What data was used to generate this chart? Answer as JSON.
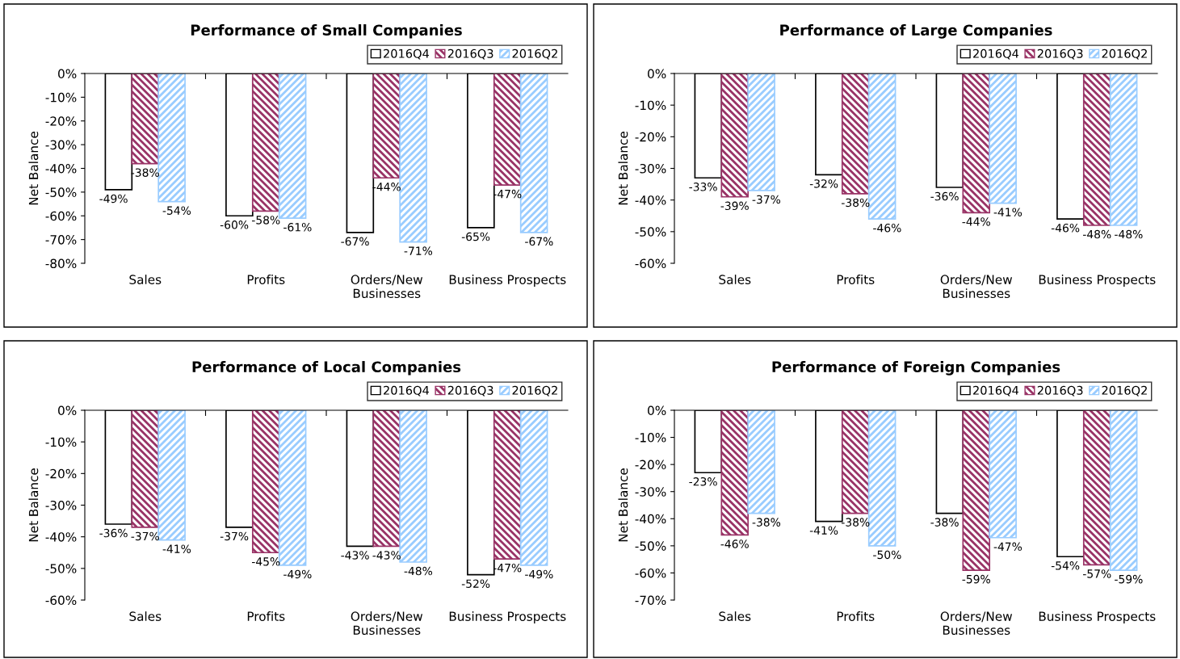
{
  "chart_data": [
    {
      "type": "bar",
      "title": "Performance of Small Companies",
      "ylabel": "Net Balance",
      "categories": [
        "Sales",
        "Profits",
        "Orders/New\nBusinesses",
        "Business Prospects"
      ],
      "legend": "top right",
      "grid": false,
      "ylim": [
        -80,
        0
      ],
      "yticks": [
        {
          "value": -80,
          "label": "-80%"
        },
        {
          "value": -70,
          "label": "-70%"
        },
        {
          "value": -60,
          "label": "-60%"
        },
        {
          "value": -50,
          "label": "-50%"
        },
        {
          "value": -40,
          "label": "-40%"
        },
        {
          "value": -30,
          "label": "-30%"
        },
        {
          "value": -20,
          "label": "-20%"
        },
        {
          "value": -10,
          "label": "-10%"
        },
        {
          "value": 0,
          "label": "0%"
        }
      ],
      "series": [
        {
          "name": "2016Q4",
          "color": "#000000",
          "values": [
            -49,
            -60,
            -67,
            -65
          ],
          "value_labels": [
            "-49%",
            "-60%",
            "-67%",
            "-65%"
          ]
        },
        {
          "name": "2016Q3",
          "color": "#993366",
          "values": [
            -38,
            -58,
            -44,
            -47
          ],
          "value_labels": [
            "-38%",
            "-58%",
            "-44%",
            "-47%"
          ]
        },
        {
          "name": "2016Q2",
          "color": "#99ccff",
          "values": [
            -54,
            -61,
            -71,
            -67
          ],
          "value_labels": [
            "-54%",
            "-61%",
            "-71%",
            "-67%"
          ]
        }
      ]
    },
    {
      "type": "bar",
      "title": "Performance of Large Companies",
      "ylabel": "Net Balance",
      "categories": [
        "Sales",
        "Profits",
        "Orders/New\nBusinesses",
        "Business Prospects"
      ],
      "legend": "top right",
      "grid": false,
      "ylim": [
        -60,
        0
      ],
      "yticks": [
        {
          "value": -60,
          "label": "-60%"
        },
        {
          "value": -50,
          "label": "-50%"
        },
        {
          "value": -40,
          "label": "-40%"
        },
        {
          "value": -30,
          "label": "-30%"
        },
        {
          "value": -20,
          "label": "-20%"
        },
        {
          "value": -10,
          "label": "-10%"
        },
        {
          "value": 0,
          "label": "0%"
        }
      ],
      "series": [
        {
          "name": "2016Q4",
          "color": "#000000",
          "values": [
            -33,
            -32,
            -36,
            -46
          ],
          "value_labels": [
            "-33%",
            "-32%",
            "-36%",
            "-46%"
          ]
        },
        {
          "name": "2016Q3",
          "color": "#993366",
          "values": [
            -39,
            -38,
            -44,
            -48
          ],
          "value_labels": [
            "-39%",
            "-38%",
            "-44%",
            "-48%"
          ]
        },
        {
          "name": "2016Q2",
          "color": "#99ccff",
          "values": [
            -37,
            -46,
            -41,
            -48
          ],
          "value_labels": [
            "-37%",
            "-46%",
            "-41%",
            "-48%"
          ]
        }
      ]
    },
    {
      "type": "bar",
      "title": "Performance of Local Companies",
      "ylabel": "Net Balance",
      "categories": [
        "Sales",
        "Profits",
        "Orders/New\nBusinesses",
        "Business Prospects"
      ],
      "legend": "top right",
      "grid": false,
      "ylim": [
        -60,
        0
      ],
      "yticks": [
        {
          "value": -60,
          "label": "-60%"
        },
        {
          "value": -50,
          "label": "-50%"
        },
        {
          "value": -40,
          "label": "-40%"
        },
        {
          "value": -30,
          "label": "-30%"
        },
        {
          "value": -20,
          "label": "-20%"
        },
        {
          "value": -10,
          "label": "-10%"
        },
        {
          "value": 0,
          "label": "0%"
        }
      ],
      "series": [
        {
          "name": "2016Q4",
          "color": "#000000",
          "values": [
            -36,
            -37,
            -43,
            -52
          ],
          "value_labels": [
            "-36%",
            "-37%",
            "-43%",
            "-52%"
          ]
        },
        {
          "name": "2016Q3",
          "color": "#993366",
          "values": [
            -37,
            -45,
            -43,
            -47
          ],
          "value_labels": [
            "-37%",
            "-45%",
            "-43%",
            "-47%"
          ]
        },
        {
          "name": "2016Q2",
          "color": "#99ccff",
          "values": [
            -41,
            -49,
            -48,
            -49
          ],
          "value_labels": [
            "-41%",
            "-49%",
            "-48%",
            "-49%"
          ]
        }
      ]
    },
    {
      "type": "bar",
      "title": "Performance of Foreign Companies",
      "ylabel": "Net Balance",
      "categories": [
        "Sales",
        "Profits",
        "Orders/New\nBusinesses",
        "Business Prospects"
      ],
      "legend": "top right",
      "grid": false,
      "ylim": [
        -70,
        0
      ],
      "yticks": [
        {
          "value": -70,
          "label": "-70%"
        },
        {
          "value": -60,
          "label": "-60%"
        },
        {
          "value": -50,
          "label": "-50%"
        },
        {
          "value": -40,
          "label": "-40%"
        },
        {
          "value": -30,
          "label": "-30%"
        },
        {
          "value": -20,
          "label": "-20%"
        },
        {
          "value": -10,
          "label": "-10%"
        },
        {
          "value": 0,
          "label": "0%"
        }
      ],
      "series": [
        {
          "name": "2016Q4",
          "color": "#000000",
          "values": [
            -23,
            -41,
            -38,
            -54
          ],
          "value_labels": [
            "-23%",
            "-41%",
            "-38%",
            "-54%"
          ]
        },
        {
          "name": "2016Q3",
          "color": "#993366",
          "values": [
            -46,
            -38,
            -59,
            -57
          ],
          "value_labels": [
            "-46%",
            "-38%",
            "-59%",
            "-57%"
          ]
        },
        {
          "name": "2016Q2",
          "color": "#99ccff",
          "values": [
            -38,
            -50,
            -47,
            -59
          ],
          "value_labels": [
            "-38%",
            "-50%",
            "-47%",
            "-59%"
          ]
        }
      ]
    }
  ]
}
